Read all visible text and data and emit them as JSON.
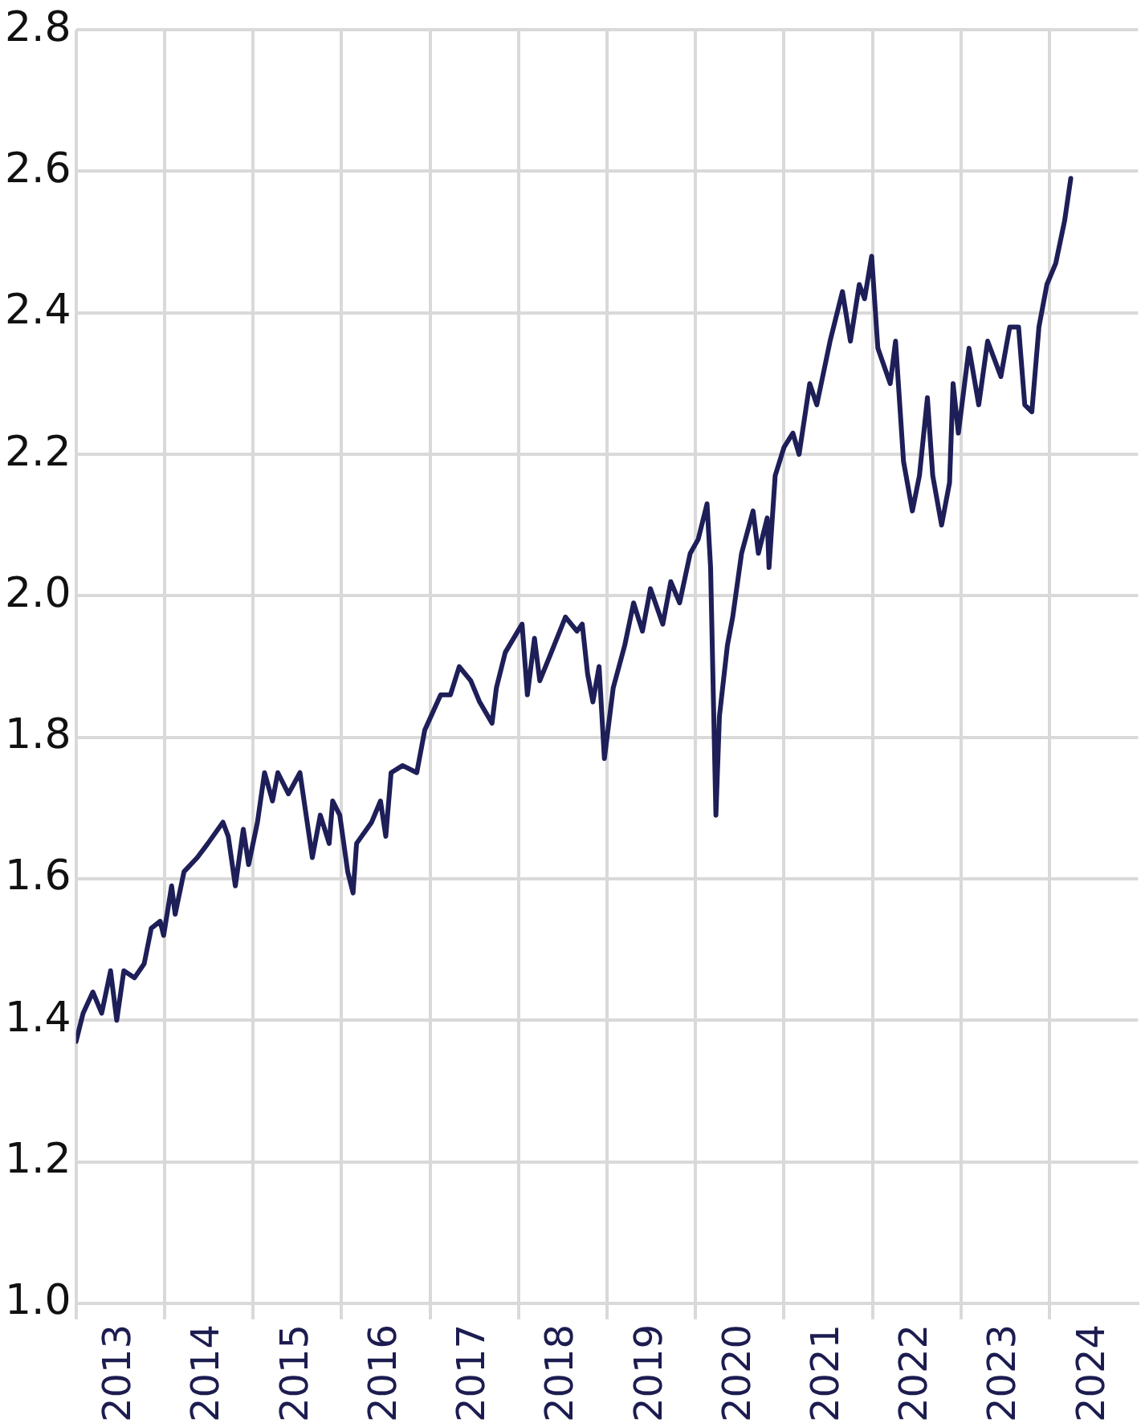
{
  "chart_data": {
    "type": "line",
    "x": [
      2013.0,
      2013.08,
      2013.19,
      2013.29,
      2013.39,
      2013.46,
      2013.54,
      2013.66,
      2013.77,
      2013.85,
      2013.95,
      2013.99,
      2014.08,
      2014.12,
      2014.22,
      2014.37,
      2014.49,
      2014.66,
      2014.72,
      2014.8,
      2014.89,
      2014.95,
      2015.05,
      2015.13,
      2015.22,
      2015.28,
      2015.4,
      2015.53,
      2015.67,
      2015.76,
      2015.86,
      2015.9,
      2015.98,
      2016.07,
      2016.13,
      2016.17,
      2016.34,
      2016.44,
      2016.5,
      2016.56,
      2016.69,
      2016.85,
      2016.94,
      2017.12,
      2017.23,
      2017.33,
      2017.46,
      2017.56,
      2017.7,
      2017.75,
      2017.85,
      2018.04,
      2018.1,
      2018.18,
      2018.24,
      2018.37,
      2018.53,
      2018.66,
      2018.72,
      2018.78,
      2018.84,
      2018.91,
      2018.97,
      2019.07,
      2019.2,
      2019.3,
      2019.4,
      2019.49,
      2019.63,
      2019.72,
      2019.82,
      2019.94,
      2020.03,
      2020.13,
      2020.17,
      2020.23,
      2020.27,
      2020.36,
      2020.42,
      2020.52,
      2020.65,
      2020.71,
      2020.81,
      2020.83,
      2020.9,
      2021.0,
      2021.1,
      2021.17,
      2021.29,
      2021.37,
      2021.52,
      2021.66,
      2021.75,
      2021.85,
      2021.91,
      2021.99,
      2022.06,
      2022.2,
      2022.26,
      2022.35,
      2022.45,
      2022.53,
      2022.62,
      2022.68,
      2022.78,
      2022.87,
      2022.91,
      2022.97,
      2023.09,
      2023.2,
      2023.3,
      2023.45,
      2023.55,
      2023.65,
      2023.72,
      2023.8,
      2023.88,
      2023.97,
      2024.07,
      2024.17,
      2024.24
    ],
    "values": [
      1.37,
      1.41,
      1.44,
      1.41,
      1.47,
      1.4,
      1.47,
      1.46,
      1.48,
      1.53,
      1.54,
      1.52,
      1.59,
      1.55,
      1.61,
      1.63,
      1.65,
      1.68,
      1.66,
      1.59,
      1.67,
      1.62,
      1.68,
      1.75,
      1.71,
      1.75,
      1.72,
      1.75,
      1.63,
      1.69,
      1.65,
      1.71,
      1.69,
      1.61,
      1.58,
      1.65,
      1.68,
      1.71,
      1.66,
      1.75,
      1.76,
      1.75,
      1.81,
      1.86,
      1.86,
      1.9,
      1.88,
      1.85,
      1.82,
      1.87,
      1.92,
      1.96,
      1.86,
      1.94,
      1.88,
      1.92,
      1.97,
      1.95,
      1.96,
      1.89,
      1.85,
      1.9,
      1.77,
      1.87,
      1.93,
      1.99,
      1.95,
      2.01,
      1.96,
      2.02,
      1.99,
      2.06,
      2.08,
      2.13,
      2.04,
      1.69,
      1.83,
      1.93,
      1.97,
      2.06,
      2.12,
      2.06,
      2.11,
      2.04,
      2.17,
      2.21,
      2.23,
      2.2,
      2.3,
      2.27,
      2.36,
      2.43,
      2.36,
      2.44,
      2.42,
      2.48,
      2.35,
      2.3,
      2.36,
      2.19,
      2.12,
      2.17,
      2.28,
      2.17,
      2.1,
      2.16,
      2.3,
      2.23,
      2.35,
      2.27,
      2.36,
      2.31,
      2.38,
      2.38,
      2.27,
      2.26,
      2.38,
      2.44,
      2.47,
      2.53,
      2.59
    ],
    "color": "#1e1e58",
    "xlim": [
      2013,
      2025
    ],
    "xticks": [
      {
        "value": 2013,
        "label": null
      },
      {
        "value": 2013.5,
        "label": "2013"
      },
      {
        "value": 2014,
        "label": null
      },
      {
        "value": 2014.5,
        "label": "2014"
      },
      {
        "value": 2015,
        "label": null
      },
      {
        "value": 2015.5,
        "label": "2015"
      },
      {
        "value": 2016,
        "label": null
      },
      {
        "value": 2016.5,
        "label": "2016"
      },
      {
        "value": 2017,
        "label": null
      },
      {
        "value": 2017.5,
        "label": "2017"
      },
      {
        "value": 2018,
        "label": null
      },
      {
        "value": 2018.5,
        "label": "2018"
      },
      {
        "value": 2019,
        "label": null
      },
      {
        "value": 2019.5,
        "label": "2019"
      },
      {
        "value": 2020,
        "label": null
      },
      {
        "value": 2020.5,
        "label": "2020"
      },
      {
        "value": 2021,
        "label": null
      },
      {
        "value": 2021.5,
        "label": "2021"
      },
      {
        "value": 2022,
        "label": null
      },
      {
        "value": 2022.5,
        "label": "2022"
      },
      {
        "value": 2023,
        "label": null
      },
      {
        "value": 2023.5,
        "label": "2023"
      },
      {
        "value": 2024,
        "label": null
      },
      {
        "value": 2024.5,
        "label": "2024"
      }
    ],
    "ylim": [
      1.0,
      2.8
    ],
    "yticks": [
      {
        "value": 1.0,
        "label": "1.0"
      },
      {
        "value": 1.2,
        "label": "1.2"
      },
      {
        "value": 1.4,
        "label": "1.4"
      },
      {
        "value": 1.6,
        "label": "1.6"
      },
      {
        "value": 1.8,
        "label": "1.8"
      },
      {
        "value": 2.0,
        "label": "2.0"
      },
      {
        "value": 2.2,
        "label": "2.2"
      },
      {
        "value": 2.4,
        "label": "2.4"
      },
      {
        "value": 2.6,
        "label": "2.6"
      },
      {
        "value": 2.8,
        "label": "2.8"
      }
    ],
    "grid": true,
    "marker": "none",
    "line_style": "solid"
  }
}
